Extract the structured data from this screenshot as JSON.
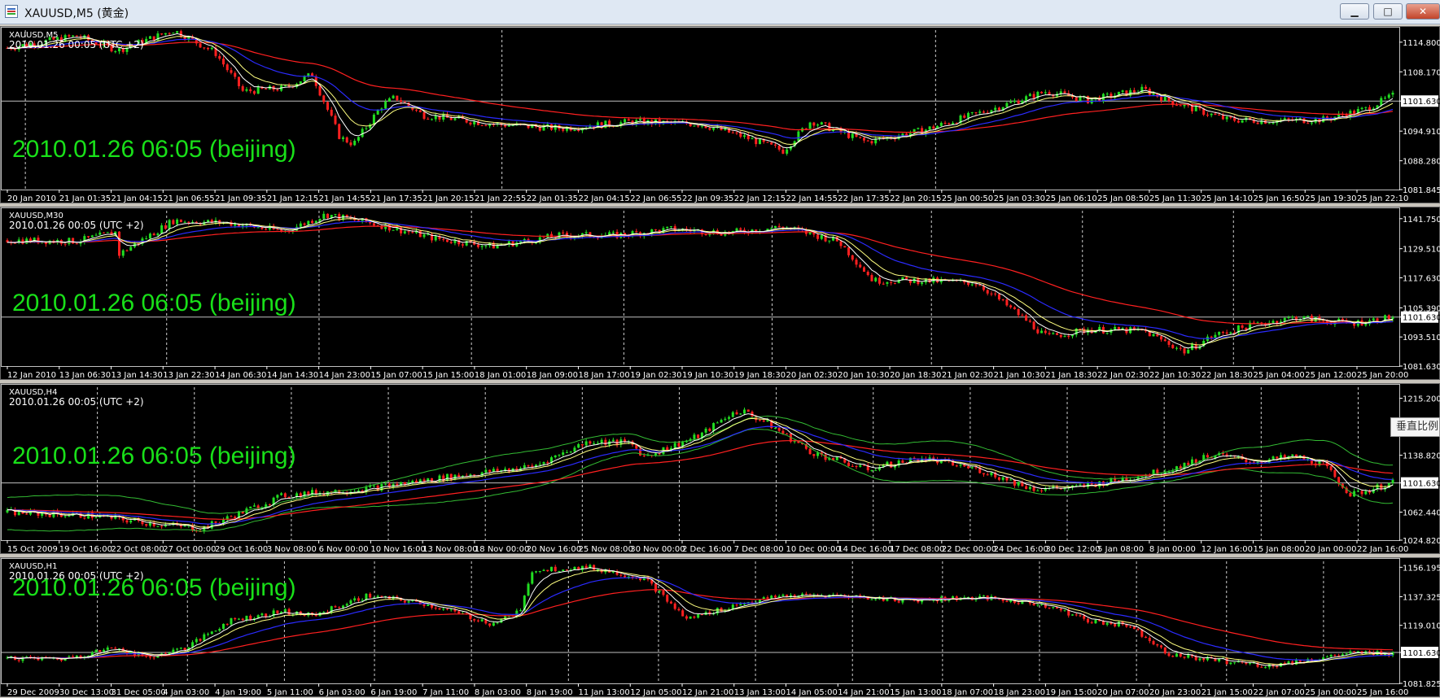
{
  "window": {
    "title": "XAUUSD,M5 (黄金)",
    "minimize_label": "▁",
    "maximize_label": "□",
    "close_label": "✕"
  },
  "side_tab": {
    "label": "垂直比例"
  },
  "colors": {
    "background": "#000000",
    "up_candle": "#22dd22",
    "down_candle": "#ff2020",
    "ma_fast": "#ffffff",
    "ma_mid": "#ffff80",
    "ma_slow": "#2b2bff",
    "ma_long": "#ff2020",
    "band": "#33bb33",
    "overlay_text": "#19e019",
    "axis_text": "#ffffff"
  },
  "charts": [
    {
      "symbol_label": "XAUUSD,M5",
      "time_label": "2010.01.26 00:05 (UTC +2)",
      "overlay": "2010.01.26 06:05 (beijing)",
      "price_labels": [
        "1114.800",
        "1108.170",
        "1101.630",
        "1094.910",
        "1088.280",
        "1081.845"
      ],
      "current_price": "1101.630",
      "time_labels": [
        "20 Jan 2010",
        "21 Jan 01:35",
        "21 Jan 04:15",
        "21 Jan 06:55",
        "21 Jan 09:35",
        "21 Jan 12:15",
        "21 Jan 14:55",
        "21 Jan 17:35",
        "21 Jan 20:15",
        "21 Jan 22:55",
        "22 Jan 01:35",
        "22 Jan 04:15",
        "22 Jan 06:55",
        "22 Jan 09:35",
        "22 Jan 12:15",
        "22 Jan 14:55",
        "22 Jan 17:35",
        "22 Jan 20:15",
        "25 Jan 00:50",
        "25 Jan 03:30",
        "25 Jan 06:10",
        "25 Jan 08:50",
        "25 Jan 11:30",
        "25 Jan 14:10",
        "25 Jan 16:50",
        "25 Jan 19:30",
        "25 Jan 22:10"
      ],
      "price_path": [
        [
          0,
          1113.5
        ],
        [
          0.05,
          1116.2
        ],
        [
          0.08,
          1113.0
        ],
        [
          0.12,
          1117.5
        ],
        [
          0.15,
          1112.5
        ],
        [
          0.17,
          1103.8
        ],
        [
          0.2,
          1104.5
        ],
        [
          0.22,
          1107.6
        ],
        [
          0.24,
          1093.5
        ],
        [
          0.25,
          1092.0
        ],
        [
          0.27,
          1100.5
        ],
        [
          0.28,
          1102.5
        ],
        [
          0.3,
          1098.5
        ],
        [
          0.35,
          1096.5
        ],
        [
          0.4,
          1095.5
        ],
        [
          0.45,
          1097.0
        ],
        [
          0.5,
          1096.5
        ],
        [
          0.53,
          1093.8
        ],
        [
          0.56,
          1090.5
        ],
        [
          0.58,
          1097.2
        ],
        [
          0.62,
          1092.5
        ],
        [
          0.66,
          1095.0
        ],
        [
          0.7,
          1098.8
        ],
        [
          0.75,
          1103.8
        ],
        [
          0.78,
          1101.8
        ],
        [
          0.82,
          1104.2
        ],
        [
          0.84,
          1101.5
        ],
        [
          0.88,
          1097.5
        ],
        [
          0.91,
          1097.2
        ],
        [
          0.95,
          1097.5
        ],
        [
          0.98,
          1099.8
        ],
        [
          1,
          1102.8
        ]
      ],
      "vgrid": [
        0.013,
        0.357,
        0.67
      ],
      "price_range": [
        1081.845,
        1117.5
      ]
    },
    {
      "symbol_label": "XAUUSD,M30",
      "time_label": "2010.01.26 00:05 (UTC +2)",
      "overlay": "2010.01.26 06:05 (beijing)",
      "price_labels": [
        "1141.750",
        "1129.510",
        "1117.630",
        "1105.390",
        "1101.630",
        "1093.510",
        "1081.630"
      ],
      "current_price": "1101.630",
      "time_labels": [
        "12 Jan 2010",
        "13 Jan 06:30",
        "13 Jan 14:30",
        "13 Jan 22:30",
        "14 Jan 06:30",
        "14 Jan 14:30",
        "14 Jan 23:00",
        "15 Jan 07:00",
        "15 Jan 15:00",
        "18 Jan 01:00",
        "18 Jan 09:00",
        "18 Jan 17:00",
        "19 Jan 02:30",
        "19 Jan 10:30",
        "19 Jan 18:30",
        "20 Jan 02:30",
        "20 Jan 10:30",
        "20 Jan 18:30",
        "21 Jan 02:30",
        "21 Jan 10:30",
        "21 Jan 18:30",
        "22 Jan 02:30",
        "22 Jan 10:30",
        "22 Jan 18:30",
        "25 Jan 04:00",
        "25 Jan 12:00",
        "25 Jan 20:00"
      ],
      "price_path": [
        [
          0,
          1133.0
        ],
        [
          0.05,
          1132.5
        ],
        [
          0.08,
          1136.5
        ],
        [
          0.08,
          1127.0
        ],
        [
          0.12,
          1141.0
        ],
        [
          0.16,
          1140.0
        ],
        [
          0.2,
          1136.5
        ],
        [
          0.23,
          1143.5
        ],
        [
          0.27,
          1139.0
        ],
        [
          0.31,
          1133.5
        ],
        [
          0.35,
          1130.5
        ],
        [
          0.4,
          1135.0
        ],
        [
          0.44,
          1135.0
        ],
        [
          0.48,
          1137.5
        ],
        [
          0.52,
          1136.0
        ],
        [
          0.56,
          1138.5
        ],
        [
          0.6,
          1132.5
        ],
        [
          0.625,
          1116.5
        ],
        [
          0.66,
          1116.5
        ],
        [
          0.7,
          1115.5
        ],
        [
          0.735,
          1100.5
        ],
        [
          0.75,
          1093.5
        ],
        [
          0.78,
          1096.5
        ],
        [
          0.82,
          1096.0
        ],
        [
          0.85,
          1087.5
        ],
        [
          0.87,
          1094.0
        ],
        [
          0.9,
          1098.5
        ],
        [
          0.93,
          1101.5
        ],
        [
          0.97,
          1099.0
        ],
        [
          1,
          1101.6
        ]
      ],
      "vgrid": [
        0.115,
        0.225,
        0.335,
        0.445,
        0.552,
        0.667,
        0.776,
        0.885
      ],
      "price_range": [
        1081.63,
        1145.0
      ]
    },
    {
      "symbol_label": "XAUUSD,H4",
      "time_label": "2010.01.26 00:05 (UTC +2)",
      "overlay": "2010.01.26 06:05 (beijing)",
      "price_labels": [
        "1215.200",
        "1138.820",
        "1101.630",
        "1062.440",
        "1024.820"
      ],
      "current_price": "1101.630",
      "time_labels": [
        "15 Oct 2009",
        "19 Oct 16:00",
        "22 Oct 08:00",
        "27 Oct 00:00",
        "29 Oct 16:00",
        "3 Nov 08:00",
        "6 Nov 00:00",
        "10 Nov 16:00",
        "13 Nov 08:00",
        "18 Nov 00:00",
        "20 Nov 16:00",
        "25 Nov 08:00",
        "30 Nov 00:00",
        "2 Dec 16:00",
        "7 Dec 08:00",
        "10 Dec 00:00",
        "14 Dec 16:00",
        "17 Dec 08:00",
        "22 Dec 00:00",
        "24 Dec 16:00",
        "30 Dec 12:00",
        "5 Jan 08:00",
        "8 Jan 00:00",
        "12 Jan 16:00",
        "15 Jan 08:00",
        "20 Jan 00:00",
        "22 Jan 16:00"
      ],
      "price_path": [
        [
          0,
          1062.0
        ],
        [
          0.06,
          1058.0
        ],
        [
          0.11,
          1046.0
        ],
        [
          0.14,
          1040.0
        ],
        [
          0.2,
          1085.0
        ],
        [
          0.26,
          1094.0
        ],
        [
          0.32,
          1110.0
        ],
        [
          0.38,
          1124.0
        ],
        [
          0.42,
          1158.0
        ],
        [
          0.45,
          1155.0
        ],
        [
          0.46,
          1137.0
        ],
        [
          0.5,
          1165.0
        ],
        [
          0.52,
          1192.0
        ],
        [
          0.53,
          1199.0
        ],
        [
          0.55,
          1180.0
        ],
        [
          0.58,
          1143.0
        ],
        [
          0.62,
          1120.0
        ],
        [
          0.66,
          1135.0
        ],
        [
          0.7,
          1120.0
        ],
        [
          0.74,
          1094.0
        ],
        [
          0.77,
          1095.0
        ],
        [
          0.8,
          1105.0
        ],
        [
          0.84,
          1120.0
        ],
        [
          0.87,
          1140.0
        ],
        [
          0.9,
          1130.0
        ],
        [
          0.93,
          1137.0
        ],
        [
          0.95,
          1126.0
        ],
        [
          0.97,
          1085.0
        ],
        [
          1,
          1101.6
        ]
      ],
      "vgrid": [
        0.065,
        0.135,
        0.205,
        0.275,
        0.345,
        0.415,
        0.485,
        0.555,
        0.625,
        0.695,
        0.765,
        0.835,
        0.905,
        0.975
      ],
      "price_range": [
        1024.82,
        1230.0
      ]
    },
    {
      "symbol_label": "XAUUSD,H1",
      "time_label": "2010.01.26 00:05 (UTC +2)",
      "overlay": "2010.01.26 06:05 (beijing)",
      "price_labels": [
        "1156.195",
        "1137.325",
        "1119.010",
        "1101.630",
        "1081.825"
      ],
      "current_price": "1101.630",
      "time_labels": [
        "29 Dec 2009",
        "30 Dec 13:00",
        "31 Dec 05:00",
        "4 Jan 03:00",
        "4 Jan 19:00",
        "5 Jan 11:00",
        "6 Jan 03:00",
        "6 Jan 19:00",
        "7 Jan 11:00",
        "8 Jan 03:00",
        "8 Jan 19:00",
        "11 Jan 13:00",
        "12 Jan 05:00",
        "12 Jan 21:00",
        "13 Jan 13:00",
        "14 Jan 05:00",
        "14 Jan 21:00",
        "15 Jan 13:00",
        "18 Jan 07:00",
        "18 Jan 23:00",
        "19 Jan 15:00",
        "20 Jan 07:00",
        "20 Jan 23:00",
        "21 Jan 15:00",
        "22 Jan 07:00",
        "25 Jan 00:00",
        "25 Jan 16:00"
      ],
      "price_path": [
        [
          0,
          1098.0
        ],
        [
          0.04,
          1097.5
        ],
        [
          0.08,
          1105.0
        ],
        [
          0.1,
          1098.0
        ],
        [
          0.13,
          1105.0
        ],
        [
          0.16,
          1122.0
        ],
        [
          0.2,
          1128.0
        ],
        [
          0.22,
          1125.0
        ],
        [
          0.26,
          1138.0
        ],
        [
          0.3,
          1133.0
        ],
        [
          0.32,
          1128.0
        ],
        [
          0.35,
          1120.0
        ],
        [
          0.37,
          1128.0
        ],
        [
          0.38,
          1155.0
        ],
        [
          0.42,
          1156.0
        ],
        [
          0.46,
          1149.0
        ],
        [
          0.49,
          1123.0
        ],
        [
          0.53,
          1133.0
        ],
        [
          0.56,
          1138.0
        ],
        [
          0.6,
          1138.0
        ],
        [
          0.65,
          1135.0
        ],
        [
          0.7,
          1137.0
        ],
        [
          0.75,
          1132.0
        ],
        [
          0.78,
          1122.0
        ],
        [
          0.81,
          1119.0
        ],
        [
          0.84,
          1100.0
        ],
        [
          0.88,
          1096.0
        ],
        [
          0.91,
          1093.0
        ],
        [
          0.94,
          1097.0
        ],
        [
          0.97,
          1101.0
        ],
        [
          1,
          1101.6
        ]
      ],
      "vgrid": [
        0.065,
        0.13,
        0.2,
        0.265,
        0.335,
        0.405,
        0.47,
        0.54,
        0.61,
        0.675,
        0.745,
        0.815,
        0.88,
        0.95
      ],
      "price_range": [
        1081.825,
        1160.0
      ]
    }
  ]
}
